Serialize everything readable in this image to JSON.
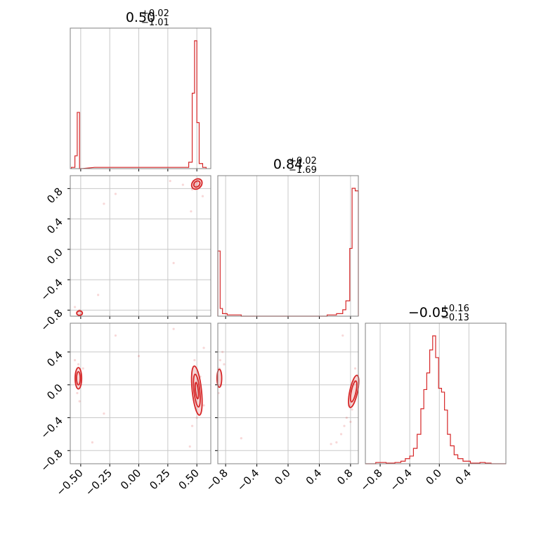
{
  "figure": {
    "type": "corner-plot",
    "color": "#d62728"
  },
  "titles": [
    {
      "value": "0.50",
      "plus": "+0.02",
      "minus": "−1.01"
    },
    {
      "value": "0.84",
      "plus": "+0.02",
      "minus": "−1.69"
    },
    {
      "value": "−0.05",
      "plus": "+0.16",
      "minus": "−0.13"
    }
  ],
  "chart_data": [
    {
      "type": "histogram",
      "panel": "p0-diag",
      "xlim": [
        -0.59,
        0.62
      ],
      "bins": [
        [
          -0.58,
          -0.55,
          0.01
        ],
        [
          -0.55,
          -0.53,
          0.1
        ],
        [
          -0.53,
          -0.51,
          0.44
        ],
        [
          -0.51,
          -0.49,
          0.0
        ],
        [
          -0.38,
          -0.36,
          0.01
        ],
        [
          0.31,
          0.34,
          0.01
        ],
        [
          0.4,
          0.43,
          0.01
        ],
        [
          0.43,
          0.46,
          0.05
        ],
        [
          0.46,
          0.48,
          0.59
        ],
        [
          0.48,
          0.5,
          1.0
        ],
        [
          0.5,
          0.52,
          0.36
        ],
        [
          0.52,
          0.55,
          0.04
        ],
        [
          0.55,
          0.58,
          0.01
        ]
      ]
    },
    {
      "type": "histogram",
      "panel": "p1-diag",
      "xlim": [
        -0.9,
        0.9
      ],
      "bins": [
        [
          -0.9,
          -0.87,
          0.51
        ],
        [
          -0.87,
          -0.84,
          0.06
        ],
        [
          -0.84,
          -0.78,
          0.02
        ],
        [
          -0.78,
          -0.6,
          0.01
        ],
        [
          -0.6,
          0.5,
          0.0
        ],
        [
          0.5,
          0.62,
          0.01
        ],
        [
          0.62,
          0.7,
          0.02
        ],
        [
          0.7,
          0.74,
          0.05
        ],
        [
          0.74,
          0.79,
          0.12
        ],
        [
          0.79,
          0.82,
          0.53
        ],
        [
          0.82,
          0.86,
          1.0
        ],
        [
          0.86,
          0.9,
          0.98
        ]
      ]
    },
    {
      "type": "histogram",
      "panel": "p2-diag",
      "xlim": [
        -1.0,
        0.9
      ],
      "bins": [
        [
          -1.0,
          -0.86,
          0.0
        ],
        [
          -0.86,
          -0.72,
          0.01
        ],
        [
          -0.72,
          -0.6,
          0.005
        ],
        [
          -0.6,
          -0.52,
          0.01
        ],
        [
          -0.52,
          -0.46,
          0.02
        ],
        [
          -0.46,
          -0.4,
          0.04
        ],
        [
          -0.4,
          -0.35,
          0.06
        ],
        [
          -0.35,
          -0.3,
          0.12
        ],
        [
          -0.3,
          -0.25,
          0.23
        ],
        [
          -0.25,
          -0.21,
          0.43
        ],
        [
          -0.21,
          -0.17,
          0.58
        ],
        [
          -0.17,
          -0.13,
          0.71
        ],
        [
          -0.13,
          -0.09,
          0.89
        ],
        [
          -0.09,
          -0.05,
          1.0
        ],
        [
          -0.05,
          -0.01,
          0.83
        ],
        [
          -0.01,
          0.03,
          0.59
        ],
        [
          0.03,
          0.07,
          0.56
        ],
        [
          0.07,
          0.11,
          0.42
        ],
        [
          0.11,
          0.15,
          0.23
        ],
        [
          0.15,
          0.2,
          0.14
        ],
        [
          0.2,
          0.25,
          0.07
        ],
        [
          0.25,
          0.32,
          0.04
        ],
        [
          0.32,
          0.42,
          0.02
        ],
        [
          0.42,
          0.55,
          0.005
        ],
        [
          0.55,
          0.62,
          0.01
        ],
        [
          0.62,
          0.7,
          0.005
        ],
        [
          0.7,
          0.9,
          0.0
        ]
      ]
    },
    {
      "type": "scatter-contour",
      "panel": "p1-p0",
      "xlim": [
        -0.59,
        0.62
      ],
      "ylim": [
        -0.88,
        0.97
      ],
      "points": [
        [
          0.48,
          0.86
        ],
        [
          0.49,
          0.84
        ],
        [
          0.5,
          0.88
        ],
        [
          0.47,
          0.9
        ],
        [
          0.52,
          0.83
        ],
        [
          0.46,
          0.79
        ],
        [
          0.38,
          0.85
        ],
        [
          0.27,
          0.9
        ],
        [
          0.55,
          0.7
        ],
        [
          -0.53,
          -0.83
        ],
        [
          -0.51,
          -0.8
        ],
        [
          -0.5,
          -0.86
        ],
        [
          -0.35,
          -0.6
        ],
        [
          -0.3,
          0.6
        ],
        [
          -0.2,
          0.73
        ],
        [
          0.3,
          -0.18
        ],
        [
          0.45,
          0.5
        ],
        [
          -0.55,
          -0.76
        ]
      ],
      "contours": [
        {
          "cx": 0.5,
          "cy": 0.86,
          "rx": 0.05,
          "ry": 0.06,
          "rot": -45
        },
        {
          "cx": 0.5,
          "cy": 0.86,
          "rx": 0.03,
          "ry": 0.035,
          "rot": -45
        },
        {
          "cx": -0.51,
          "cy": -0.84,
          "rx": 0.025,
          "ry": 0.03,
          "rot": 0
        }
      ]
    },
    {
      "type": "scatter-contour",
      "panel": "p2-p0",
      "xlim": [
        -0.59,
        0.62
      ],
      "ylim": [
        -0.96,
        0.75
      ],
      "points": [
        [
          -0.52,
          0.25
        ],
        [
          -0.5,
          0.0
        ],
        [
          -0.53,
          -0.1
        ],
        [
          -0.55,
          0.3
        ],
        [
          -0.48,
          0.2
        ],
        [
          -0.51,
          -0.2
        ],
        [
          0.48,
          0.3
        ],
        [
          0.5,
          -0.4
        ],
        [
          0.53,
          0.1
        ],
        [
          0.46,
          -0.5
        ],
        [
          0.44,
          -0.75
        ],
        [
          0.56,
          0.45
        ],
        [
          -0.3,
          -0.35
        ],
        [
          -0.4,
          -0.7
        ],
        [
          -0.2,
          0.6
        ],
        [
          0.3,
          0.68
        ],
        [
          0.0,
          0.35
        ],
        [
          0.56,
          -0.25
        ]
      ],
      "contours": [
        {
          "cx": -0.52,
          "cy": 0.08,
          "rx": 0.028,
          "ry": 0.13,
          "rot": 0
        },
        {
          "cx": -0.52,
          "cy": 0.08,
          "rx": 0.016,
          "ry": 0.08,
          "rot": 0
        },
        {
          "cx": 0.5,
          "cy": -0.07,
          "rx": 0.04,
          "ry": 0.3,
          "rot": -6
        },
        {
          "cx": 0.5,
          "cy": -0.07,
          "rx": 0.025,
          "ry": 0.2,
          "rot": -6
        },
        {
          "cx": 0.5,
          "cy": -0.07,
          "rx": 0.012,
          "ry": 0.1,
          "rot": -6
        }
      ]
    },
    {
      "type": "scatter-contour",
      "panel": "p2-p1",
      "xlim": [
        -0.9,
        0.9
      ],
      "ylim": [
        -0.96,
        0.75
      ],
      "points": [
        [
          -0.88,
          0.2
        ],
        [
          -0.86,
          0.0
        ],
        [
          -0.89,
          -0.1
        ],
        [
          -0.84,
          0.4
        ],
        [
          -0.82,
          0.25
        ],
        [
          -0.87,
          0.3
        ],
        [
          0.82,
          -0.3
        ],
        [
          0.84,
          0.05
        ],
        [
          0.8,
          -0.45
        ],
        [
          0.86,
          0.2
        ],
        [
          0.78,
          -0.25
        ],
        [
          0.68,
          -0.6
        ],
        [
          0.62,
          -0.7
        ],
        [
          0.55,
          -0.72
        ],
        [
          0.75,
          -0.4
        ],
        [
          -0.6,
          -0.65
        ],
        [
          0.7,
          0.6
        ],
        [
          0.72,
          -0.5
        ]
      ],
      "contours": [
        {
          "cx": -0.88,
          "cy": 0.08,
          "rx": 0.03,
          "ry": 0.11,
          "rot": 0
        },
        {
          "cx": 0.84,
          "cy": -0.08,
          "rx": 0.05,
          "ry": 0.2,
          "rot": 12
        },
        {
          "cx": 0.84,
          "cy": -0.08,
          "rx": 0.03,
          "ry": 0.13,
          "rot": 12
        }
      ]
    }
  ],
  "ticks": {
    "p0": [
      {
        "value": -0.5,
        "label": "−0.50"
      },
      {
        "value": -0.25,
        "label": "−0.25"
      },
      {
        "value": 0.0,
        "label": "0.00"
      },
      {
        "value": 0.25,
        "label": "0.25"
      },
      {
        "value": 0.5,
        "label": "0.50"
      }
    ],
    "p1": [
      {
        "value": -0.8,
        "label": "−0.8"
      },
      {
        "value": -0.4,
        "label": "−0.4"
      },
      {
        "value": 0.0,
        "label": "0.0"
      },
      {
        "value": 0.4,
        "label": "0.4"
      },
      {
        "value": 0.8,
        "label": "0.8"
      }
    ],
    "p2": [
      {
        "value": -0.8,
        "label": "−0.8"
      },
      {
        "value": -0.4,
        "label": "−0.4"
      },
      {
        "value": 0.0,
        "label": "0.0"
      },
      {
        "value": 0.4,
        "label": "0.4"
      }
    ]
  }
}
